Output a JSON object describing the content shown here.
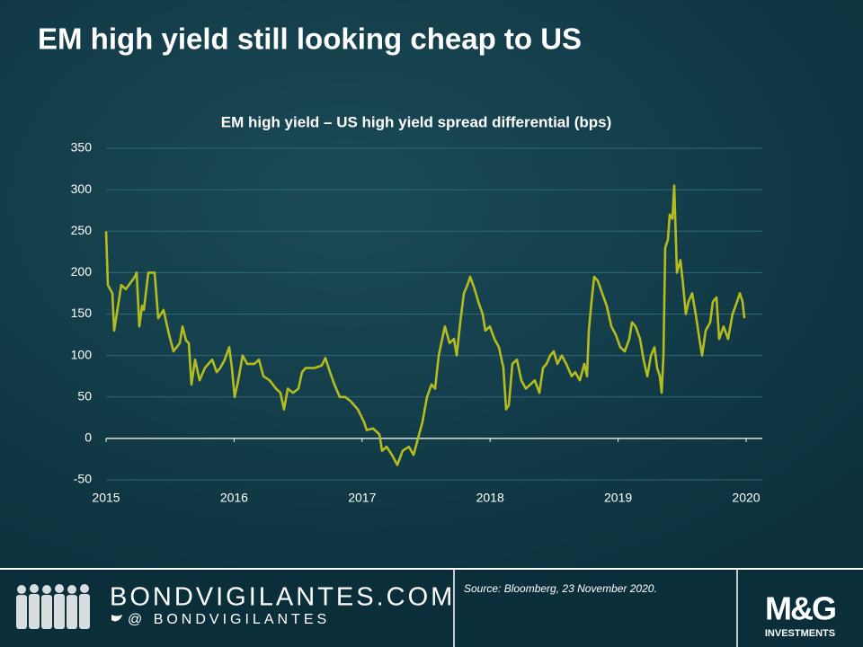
{
  "title": "EM high yield still looking cheap to US",
  "chart_data": {
    "type": "line",
    "title": "EM high yield – US high yield spread differential (bps)",
    "color": "#b5bd1e",
    "grid": true,
    "xlim": [
      2015,
      2020
    ],
    "xticks": [
      2015,
      2016,
      2017,
      2018,
      2019,
      2020
    ],
    "ylim": [
      -50,
      350
    ],
    "yticks": [
      -50,
      0,
      50,
      100,
      150,
      200,
      250,
      300,
      350
    ],
    "x": [
      2015.0,
      2015.014,
      2015.049,
      2015.063,
      2015.119,
      2015.154,
      2015.225,
      2015.239,
      2015.26,
      2015.281,
      2015.295,
      2015.33,
      2015.379,
      2015.407,
      2015.449,
      2015.492,
      2015.527,
      2015.576,
      2015.597,
      2015.625,
      2015.646,
      2015.667,
      2015.695,
      2015.73,
      2015.772,
      2015.829,
      2015.864,
      2015.892,
      2015.927,
      2015.962,
      2015.983,
      2016.004,
      2016.032,
      2016.067,
      2016.102,
      2016.159,
      2016.194,
      2016.229,
      2016.278,
      2016.327,
      2016.362,
      2016.39,
      2016.419,
      2016.461,
      2016.503,
      2016.531,
      2016.559,
      2016.629,
      2016.685,
      2016.713,
      2016.749,
      2016.784,
      2016.826,
      2016.868,
      2016.91,
      2016.966,
      2017.015,
      2017.036,
      2017.086,
      2017.135,
      2017.156,
      2017.191,
      2017.233,
      2017.275,
      2017.317,
      2017.366,
      2017.402,
      2017.437,
      2017.472,
      2017.507,
      2017.542,
      2017.57,
      2017.598,
      2017.626,
      2017.647,
      2017.683,
      2017.718,
      2017.739,
      2017.767,
      2017.795,
      2017.823,
      2017.844,
      2017.879,
      2017.907,
      2017.942,
      2017.963,
      2017.998,
      2018.034,
      2018.069,
      2018.104,
      2018.125,
      2018.146,
      2018.174,
      2018.209,
      2018.244,
      2018.279,
      2018.314,
      2018.349,
      2018.385,
      2018.413,
      2018.441,
      2018.469,
      2018.497,
      2018.525,
      2018.56,
      2018.595,
      2018.637,
      2018.665,
      2018.701,
      2018.736,
      2018.757,
      2018.771,
      2018.792,
      2018.813,
      2018.841,
      2018.876,
      2018.911,
      2018.947,
      2018.982,
      2019.017,
      2019.052,
      2019.087,
      2019.108,
      2019.136,
      2019.171,
      2019.199,
      2019.228,
      2019.256,
      2019.284,
      2019.305,
      2019.326,
      2019.34,
      2019.354,
      2019.368,
      2019.389,
      2019.403,
      2019.424,
      2019.438,
      2019.459,
      2019.487,
      2019.508,
      2019.529,
      2019.55,
      2019.578,
      2019.606,
      2019.635,
      2019.656,
      2019.684,
      2019.719,
      2019.74,
      2019.768,
      2019.789,
      2019.824,
      2019.859,
      2019.894,
      2019.929,
      2019.951,
      2019.972,
      2019.986
    ],
    "values": [
      250,
      185,
      175,
      130,
      185,
      180,
      195,
      200,
      135,
      160,
      155,
      200,
      200,
      145,
      155,
      125,
      105,
      115,
      135,
      118,
      115,
      65,
      95,
      70,
      85,
      95,
      80,
      85,
      95,
      110,
      85,
      50,
      70,
      100,
      90,
      90,
      95,
      75,
      70,
      60,
      55,
      35,
      60,
      55,
      60,
      80,
      85,
      85,
      88,
      97,
      80,
      65,
      50,
      50,
      45,
      35,
      20,
      10,
      12,
      5,
      -15,
      -10,
      -20,
      -32,
      -15,
      -10,
      -20,
      0,
      20,
      50,
      65,
      60,
      100,
      120,
      135,
      115,
      120,
      100,
      140,
      175,
      185,
      195,
      180,
      165,
      150,
      130,
      135,
      120,
      110,
      85,
      35,
      40,
      90,
      95,
      70,
      60,
      65,
      70,
      55,
      85,
      90,
      100,
      105,
      90,
      100,
      90,
      75,
      80,
      70,
      90,
      75,
      130,
      165,
      195,
      190,
      175,
      160,
      135,
      125,
      110,
      105,
      120,
      140,
      135,
      120,
      95,
      75,
      100,
      110,
      85,
      75,
      55,
      100,
      230,
      240,
      270,
      265,
      305,
      200,
      215,
      185,
      150,
      165,
      175,
      150,
      120,
      100,
      130,
      140,
      165,
      170,
      120,
      135,
      120,
      150,
      165,
      175,
      165,
      145
    ]
  },
  "footer": {
    "site": "BONDVIGILANTES.COM",
    "handle": "@ BONDVIGILANTES",
    "source": "Source: Bloomberg, 23 November 2020.",
    "brand": "M&G",
    "brand_sub": "INVESTMENTS"
  }
}
